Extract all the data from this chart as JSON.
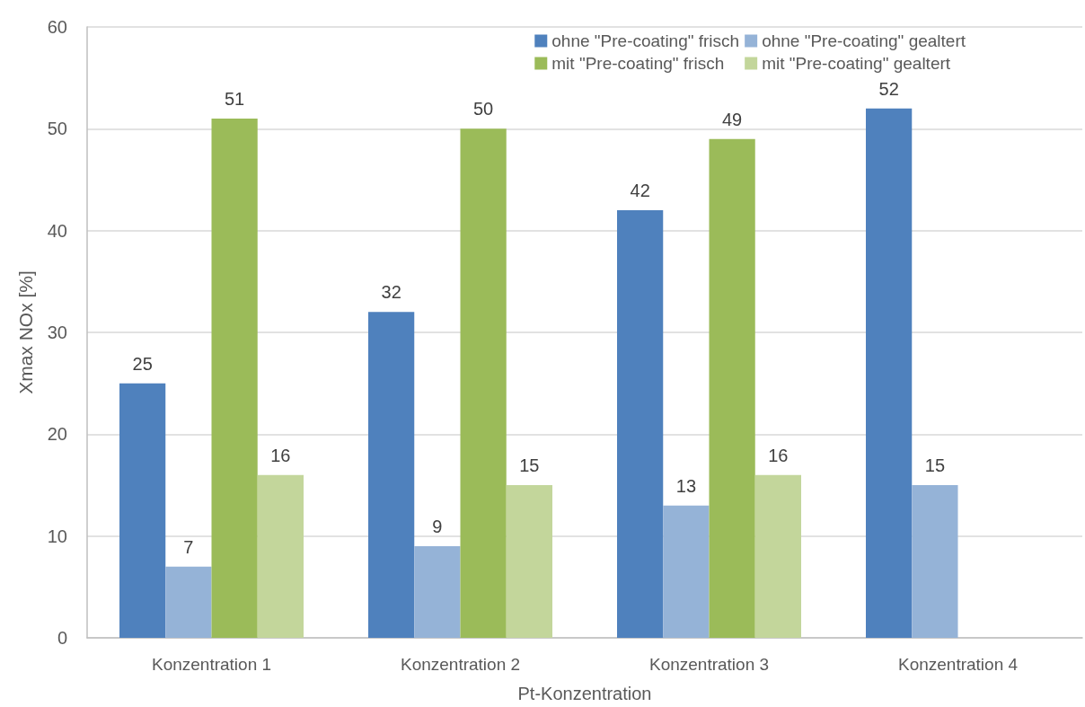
{
  "chart_data": {
    "type": "bar",
    "xlabel": "Pt-Konzentration",
    "ylabel": "Xmax NOx [%]",
    "categories": [
      "Konzentration 1",
      "Konzentration 2",
      "Konzentration 3",
      "Konzentration 4"
    ],
    "series": [
      {
        "name": "ohne \"Pre-coating\" frisch",
        "color": "#4f81bd",
        "values": [
          25,
          32,
          42,
          52
        ]
      },
      {
        "name": "ohne \"Pre-coating\" gealtert",
        "color": "#95b3d7",
        "values": [
          7,
          9,
          13,
          15
        ]
      },
      {
        "name": "mit \"Pre-coating\" frisch",
        "color": "#9bbb59",
        "values": [
          51,
          50,
          49,
          null
        ]
      },
      {
        "name": "mit \"Pre-coating\" gealtert",
        "color": "#c3d69b",
        "values": [
          16,
          15,
          16,
          null
        ]
      }
    ],
    "ylim": [
      0,
      60
    ],
    "yticks": [
      0,
      10,
      20,
      30,
      40,
      50,
      60
    ],
    "grid": "y",
    "legend": "top right",
    "data_labels": true
  }
}
